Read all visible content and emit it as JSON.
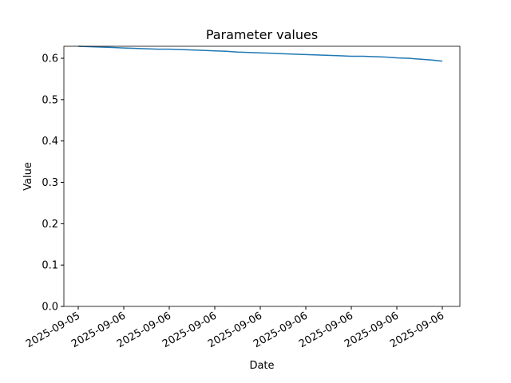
{
  "chart_data": {
    "type": "line",
    "title": "Parameter values",
    "x_label": "Date",
    "y_label": "Value",
    "categories": [
      "2025-09-05",
      null,
      null,
      null,
      "2025-09-06",
      null,
      null,
      null,
      "2025-09-06",
      null,
      null,
      null,
      "2025-09-06",
      null,
      null,
      null,
      "2025-09-06",
      null,
      null,
      null,
      "2025-09-06",
      null,
      null,
      null,
      "2025-09-06",
      null,
      null,
      null,
      "2025-09-06",
      null,
      null,
      null,
      "2025-09-06"
    ],
    "values": [
      0.629,
      0.628,
      0.627,
      0.626,
      0.625,
      0.624,
      0.623,
      0.622,
      0.622,
      0.621,
      0.62,
      0.619,
      0.618,
      0.617,
      0.615,
      0.614,
      0.613,
      0.612,
      0.611,
      0.61,
      0.609,
      0.608,
      0.607,
      0.606,
      0.605,
      0.605,
      0.604,
      0.603,
      0.601,
      0.6,
      0.598,
      0.596,
      0.593
    ],
    "color": "#1f77b4",
    "ylim": [
      0,
      0.629
    ],
    "yticks": [
      {
        "value": 0,
        "label": "0.0"
      },
      0.1,
      0.2,
      0.3,
      0.4,
      0.5,
      0.6
    ]
  }
}
